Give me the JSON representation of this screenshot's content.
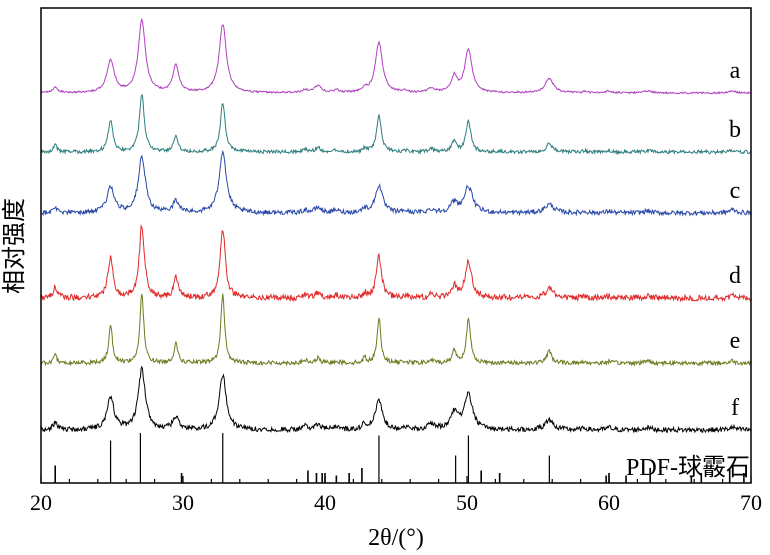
{
  "chart_data": {
    "type": "line",
    "xlabel": "2θ/(°)",
    "ylabel": "相对强度",
    "xlim": [
      20,
      70
    ],
    "xticks": [
      "20",
      "30",
      "40",
      "50",
      "60",
      "70"
    ],
    "y_ticks_shown": false,
    "grid": false,
    "peaks_2theta": [
      21.0,
      24.9,
      27.1,
      29.5,
      32.8,
      38.6,
      39.5,
      40.8,
      42.8,
      43.8,
      45.6,
      47.5,
      49.1,
      50.1,
      55.8,
      58.3,
      60.0,
      62.7,
      68.7
    ],
    "series": [
      {
        "name": "a",
        "color": "#b040c0",
        "peak_heights": [
          0.08,
          0.45,
          1.0,
          0.38,
          0.95,
          0.04,
          0.1,
          0.04,
          0.05,
          0.7,
          0.03,
          0.06,
          0.22,
          0.6,
          0.2,
          0.02,
          0.03,
          0.03,
          0.03
        ],
        "peak_widths": [
          0.2,
          0.3,
          0.3,
          0.25,
          0.3,
          0.2,
          0.3,
          0.2,
          0.2,
          0.3,
          0.2,
          0.3,
          0.25,
          0.3,
          0.35,
          0.2,
          0.2,
          0.3,
          0.3
        ],
        "noise": 0.012
      },
      {
        "name": "b",
        "color": "#2e7d7d",
        "peak_heights": [
          0.12,
          0.55,
          1.0,
          0.28,
          0.85,
          0.05,
          0.08,
          0.04,
          0.06,
          0.62,
          0.03,
          0.05,
          0.18,
          0.55,
          0.15,
          0.02,
          0.03,
          0.03,
          0.03
        ],
        "peak_widths": [
          0.15,
          0.2,
          0.2,
          0.18,
          0.2,
          0.15,
          0.2,
          0.15,
          0.15,
          0.2,
          0.15,
          0.2,
          0.2,
          0.2,
          0.25,
          0.15,
          0.15,
          0.2,
          0.2
        ],
        "noise": 0.03
      },
      {
        "name": "c",
        "color": "#2848a8",
        "peak_heights": [
          0.08,
          0.4,
          0.85,
          0.18,
          0.95,
          0.04,
          0.08,
          0.04,
          0.06,
          0.42,
          0.03,
          0.05,
          0.15,
          0.4,
          0.13,
          0.02,
          0.03,
          0.03,
          0.05
        ],
        "peak_widths": [
          0.2,
          0.3,
          0.3,
          0.25,
          0.3,
          0.2,
          0.3,
          0.2,
          0.2,
          0.3,
          0.2,
          0.3,
          0.3,
          0.35,
          0.4,
          0.2,
          0.2,
          0.3,
          0.3
        ],
        "noise": 0.035
      },
      {
        "name": "d",
        "color": "#e02a2a",
        "peak_heights": [
          0.15,
          0.55,
          1.0,
          0.3,
          0.95,
          0.04,
          0.08,
          0.04,
          0.06,
          0.58,
          0.03,
          0.05,
          0.16,
          0.5,
          0.14,
          0.02,
          0.03,
          0.03,
          0.04
        ],
        "peak_widths": [
          0.18,
          0.22,
          0.22,
          0.18,
          0.22,
          0.15,
          0.2,
          0.15,
          0.15,
          0.22,
          0.15,
          0.2,
          0.2,
          0.28,
          0.3,
          0.15,
          0.15,
          0.2,
          0.2
        ],
        "noise": 0.04
      },
      {
        "name": "e",
        "color": "#6e7a1e",
        "peak_heights": [
          0.12,
          0.62,
          1.15,
          0.35,
          1.15,
          0.05,
          0.08,
          0.04,
          0.08,
          0.75,
          0.03,
          0.05,
          0.22,
          0.72,
          0.2,
          0.02,
          0.03,
          0.05,
          0.04
        ],
        "peak_widths": [
          0.14,
          0.16,
          0.16,
          0.15,
          0.16,
          0.14,
          0.16,
          0.14,
          0.14,
          0.16,
          0.14,
          0.16,
          0.16,
          0.18,
          0.2,
          0.14,
          0.14,
          0.16,
          0.16
        ],
        "noise": 0.035
      },
      {
        "name": "f",
        "color": "#000000",
        "peak_heights": [
          0.08,
          0.38,
          0.72,
          0.15,
          0.65,
          0.04,
          0.06,
          0.04,
          0.06,
          0.35,
          0.03,
          0.06,
          0.2,
          0.42,
          0.12,
          0.02,
          0.03,
          0.03,
          0.03
        ],
        "peak_widths": [
          0.2,
          0.3,
          0.3,
          0.25,
          0.3,
          0.2,
          0.3,
          0.2,
          0.2,
          0.3,
          0.2,
          0.35,
          0.3,
          0.35,
          0.35,
          0.2,
          0.2,
          0.3,
          0.3
        ],
        "noise": 0.03
      }
    ],
    "reference": {
      "name": "PDF-球霰石",
      "lines": [
        {
          "x": 21.0,
          "h": 0.35
        },
        {
          "x": 24.9,
          "h": 0.85
        },
        {
          "x": 27.0,
          "h": 1.0
        },
        {
          "x": 29.9,
          "h": 0.2
        },
        {
          "x": 32.8,
          "h": 1.0
        },
        {
          "x": 38.8,
          "h": 0.25
        },
        {
          "x": 39.4,
          "h": 0.2
        },
        {
          "x": 39.8,
          "h": 0.2
        },
        {
          "x": 40.0,
          "h": 0.2
        },
        {
          "x": 40.8,
          "h": 0.15
        },
        {
          "x": 41.7,
          "h": 0.2
        },
        {
          "x": 42.6,
          "h": 0.3
        },
        {
          "x": 43.8,
          "h": 0.95
        },
        {
          "x": 49.2,
          "h": 0.55
        },
        {
          "x": 50.1,
          "h": 0.95
        },
        {
          "x": 51.0,
          "h": 0.25
        },
        {
          "x": 52.3,
          "h": 0.2
        },
        {
          "x": 55.8,
          "h": 0.55
        },
        {
          "x": 59.8,
          "h": 0.15
        },
        {
          "x": 60.0,
          "h": 0.2
        },
        {
          "x": 61.2,
          "h": 0.15
        },
        {
          "x": 62.9,
          "h": 0.3
        },
        {
          "x": 65.8,
          "h": 0.15
        },
        {
          "x": 66.5,
          "h": 0.2
        },
        {
          "x": 68.5,
          "h": 0.3
        },
        {
          "x": 69.5,
          "h": 0.2
        }
      ]
    }
  }
}
